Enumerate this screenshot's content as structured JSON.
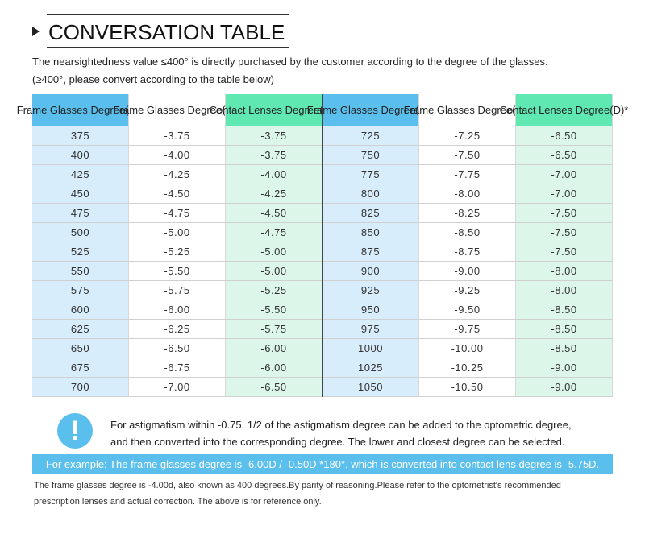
{
  "header": {
    "title": "CONVERSATION TABLE",
    "intro": [
      "The nearsightedness value ≤400° is directly purchased by the customer according to the degree of the glasses.",
      "(≥400°, please convert according to the table below)"
    ]
  },
  "table": {
    "headers": [
      "Frame Glasses Degree(D)*",
      "Frame Glasses Degree(D)*",
      "Contact Lenses Degree(D)*",
      "Frame Glasses Degree(D)*",
      "Frame Glasses Degree(D)*",
      "Contact Lenses Degree(D)*"
    ],
    "rows": [
      [
        "375",
        "-3.75",
        "-3.75",
        "725",
        "-7.25",
        "-6.50"
      ],
      [
        "400",
        "-4.00",
        "-3.75",
        "750",
        "-7.50",
        "-6.50"
      ],
      [
        "425",
        "-4.25",
        "-4.00",
        "775",
        "-7.75",
        "-7.00"
      ],
      [
        "450",
        "-4.50",
        "-4.25",
        "800",
        "-8.00",
        "-7.00"
      ],
      [
        "475",
        "-4.75",
        "-4.50",
        "825",
        "-8.25",
        "-7.50"
      ],
      [
        "500",
        "-5.00",
        "-4.75",
        "850",
        "-8.50",
        "-7.50"
      ],
      [
        "525",
        "-5.25",
        "-5.00",
        "875",
        "-8.75",
        "-7.50"
      ],
      [
        "550",
        "-5.50",
        "-5.00",
        "900",
        "-9.00",
        "-8.00"
      ],
      [
        "575",
        "-5.75",
        "-5.25",
        "925",
        "-9.25",
        "-8.00"
      ],
      [
        "600",
        "-6.00",
        "-5.50",
        "950",
        "-9.50",
        "-8.50"
      ],
      [
        "625",
        "-6.25",
        "-5.75",
        "975",
        "-9.75",
        "-8.50"
      ],
      [
        "650",
        "-6.50",
        "-6.00",
        "1000",
        "-10.00",
        "-8.50"
      ],
      [
        "675",
        "-6.75",
        "-6.00",
        "1025",
        "-10.25",
        "-9.00"
      ],
      [
        "700",
        "-7.00",
        "-6.50",
        "1050",
        "-10.50",
        "-9.00"
      ]
    ]
  },
  "note": {
    "icon": "!",
    "lines": [
      "For astigmatism within -0.75, 1/2 of the astigmatism degree can be added to the optometric degree,",
      "and then converted into the corresponding degree. The lower and closest degree can be selected."
    ]
  },
  "example": "For example: The frame glasses degree is -6.00D / -0.50D *180°, which is converted into contact lens degree is -5.75D.",
  "footer": [
    "The frame glasses degree is -4.00d, also known as 400 degrees.By parity of reasoning.Please refer to the optometrist's recommended",
    "prescription lenses and actual correction. The above is for reference only."
  ]
}
